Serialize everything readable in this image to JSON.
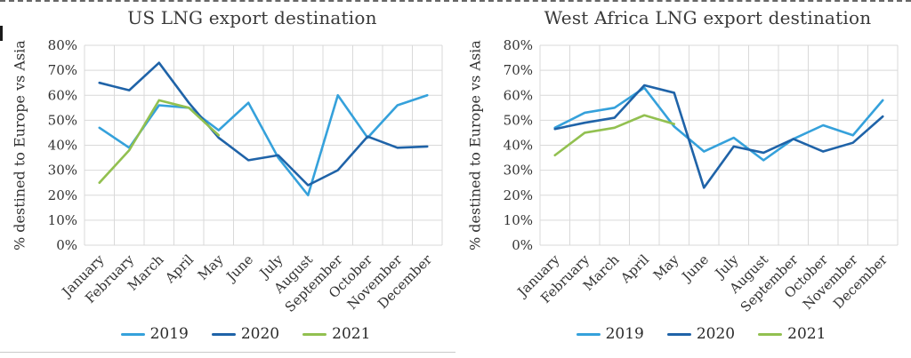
{
  "selection_artifacts": {
    "top_border": "dashed",
    "left_edge_mark": true
  },
  "chart_data": [
    {
      "type": "line",
      "title": "US LNG export destination",
      "ylabel": "% destined to Europe vs Asia",
      "xlabel": "",
      "ylim": [
        0,
        80
      ],
      "grid": true,
      "legend_position": "bottom",
      "y_ticks": [
        "0%",
        "10%",
        "20%",
        "30%",
        "40%",
        "50%",
        "60%",
        "70%",
        "80%"
      ],
      "categories": [
        "January",
        "February",
        "March",
        "April",
        "May",
        "June",
        "July",
        "August",
        "September",
        "October",
        "November",
        "December"
      ],
      "series": [
        {
          "name": "2019",
          "color": "#35A1DB",
          "values": [
            47,
            39,
            56,
            55,
            46,
            57,
            35,
            20,
            60,
            43,
            56,
            60
          ]
        },
        {
          "name": "2020",
          "color": "#1F63A8",
          "values": [
            65,
            62,
            73,
            57,
            43,
            34,
            36,
            24,
            30,
            43.5,
            39,
            39.5
          ]
        },
        {
          "name": "2021",
          "color": "#92C050",
          "values": [
            25,
            38,
            58,
            55,
            44
          ]
        }
      ]
    },
    {
      "type": "line",
      "title": "West Africa LNG export destination",
      "ylabel": "% destined to Europe vs Asia",
      "xlabel": "",
      "ylim": [
        0,
        80
      ],
      "grid": true,
      "legend_position": "bottom",
      "y_ticks": [
        "0%",
        "10%",
        "20%",
        "30%",
        "40%",
        "50%",
        "60%",
        "70%",
        "80%"
      ],
      "categories": [
        "January",
        "February",
        "March",
        "April",
        "May",
        "June",
        "July",
        "August",
        "September",
        "October",
        "November",
        "December"
      ],
      "series": [
        {
          "name": "2019",
          "color": "#35A1DB",
          "values": [
            47,
            53,
            55,
            63,
            47.5,
            37.5,
            43,
            34,
            42.5,
            48,
            44,
            58
          ]
        },
        {
          "name": "2020",
          "color": "#1F63A8",
          "values": [
            46.5,
            49,
            51,
            64,
            61,
            23,
            39.5,
            37,
            42.5,
            37.5,
            41,
            51.5
          ]
        },
        {
          "name": "2021",
          "color": "#92C050",
          "values": [
            36,
            45,
            47,
            52,
            48.5
          ]
        }
      ]
    }
  ],
  "colors": {
    "gridline": "#D9D9D9",
    "axis_text": "#333333",
    "title_text": "#3A3A3A",
    "series_2019": "#35A1DB",
    "series_2020": "#1F63A8",
    "series_2021": "#92C050"
  }
}
